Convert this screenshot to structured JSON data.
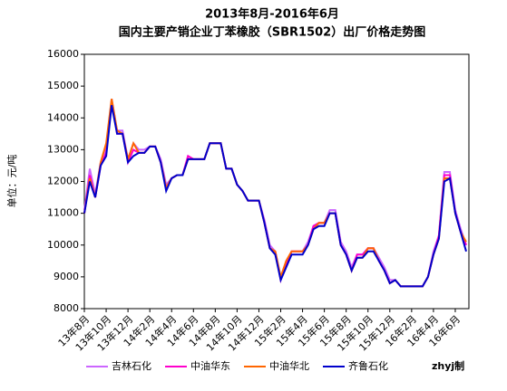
{
  "chart_data": {
    "type": "line",
    "title": "2013年8月-2016年6月",
    "subtitle": "国内主要产销企业丁苯橡胶（SBR1502）出厂价格走势图",
    "y_label": "单位：元/吨",
    "annotation": "zhyj制",
    "categories": [
      "13年8月",
      null,
      null,
      null,
      "13年10月",
      null,
      null,
      null,
      "13年12月",
      null,
      null,
      null,
      "14年2月",
      null,
      null,
      null,
      "14年4月",
      null,
      null,
      null,
      "14年6月",
      null,
      null,
      null,
      "14年8月",
      null,
      null,
      null,
      "14年10月",
      null,
      null,
      null,
      "14年12月",
      null,
      null,
      null,
      "15年2月",
      null,
      null,
      null,
      "15年4月",
      null,
      null,
      null,
      "15年6月",
      null,
      null,
      null,
      "15年8月",
      null,
      null,
      null,
      "15年10月",
      null,
      null,
      null,
      "15年12月",
      null,
      null,
      null,
      "16年2月",
      null,
      null,
      null,
      "16年4月",
      null,
      null,
      null,
      "16年6月",
      null,
      null
    ],
    "ylim": [
      8000,
      16000
    ],
    "yticks": [
      8000,
      9000,
      10000,
      11000,
      12000,
      13000,
      14000,
      15000,
      16000
    ],
    "grid": false,
    "legend": "bottom",
    "series": [
      {
        "name": "吉林石化",
        "color": "#cc66ff",
        "values": [
          11100,
          12400,
          11600,
          12600,
          13000,
          14600,
          13600,
          13600,
          12700,
          13200,
          13000,
          13000,
          13100,
          13100,
          12700,
          11900,
          12100,
          12200,
          12200,
          12800,
          12700,
          12700,
          12700,
          13200,
          13200,
          13200,
          12400,
          12400,
          11900,
          11700,
          11400,
          11400,
          11400,
          10800,
          10000,
          9800,
          9000,
          9400,
          9800,
          9800,
          9800,
          10100,
          10600,
          10700,
          10700,
          11100,
          11100,
          10100,
          9800,
          9300,
          9700,
          9700,
          9900,
          9900,
          9600,
          9300,
          8900,
          8900,
          8700,
          8700,
          8700,
          8700,
          8700,
          9000,
          9800,
          10300,
          12300,
          12300,
          11100,
          10500,
          10000
        ]
      },
      {
        "name": "中油华东",
        "color": "#ff00cc",
        "values": [
          11000,
          12200,
          11500,
          12500,
          12900,
          14500,
          13500,
          13500,
          12600,
          13000,
          12900,
          12900,
          13100,
          13100,
          12600,
          11800,
          12100,
          12200,
          12200,
          12800,
          12700,
          12700,
          12700,
          13200,
          13200,
          13200,
          12400,
          12400,
          11900,
          11700,
          11400,
          11400,
          11400,
          10700,
          9900,
          9800,
          8900,
          9400,
          9800,
          9800,
          9800,
          10000,
          10600,
          10700,
          10700,
          11000,
          11000,
          10000,
          9700,
          9200,
          9700,
          9700,
          9900,
          9900,
          9500,
          9200,
          8800,
          8900,
          8700,
          8700,
          8700,
          8700,
          8700,
          9000,
          9700,
          10300,
          12200,
          12200,
          11000,
          10400,
          10000
        ]
      },
      {
        "name": "中油华北",
        "color": "#ff6600",
        "values": [
          11000,
          12100,
          11500,
          12600,
          13200,
          14600,
          13600,
          13500,
          12700,
          13200,
          12900,
          12900,
          13100,
          13100,
          12600,
          11800,
          12100,
          12200,
          12200,
          12700,
          12700,
          12700,
          12700,
          13200,
          13200,
          13200,
          12400,
          12400,
          11900,
          11700,
          11400,
          11400,
          11400,
          10700,
          9900,
          9800,
          9000,
          9500,
          9800,
          9800,
          9800,
          10000,
          10500,
          10700,
          10700,
          11000,
          11000,
          10000,
          9700,
          9200,
          9600,
          9600,
          9900,
          9900,
          9500,
          9200,
          8800,
          8900,
          8700,
          8700,
          8700,
          8700,
          8700,
          9000,
          9700,
          10200,
          12100,
          12100,
          11000,
          10400,
          10100
        ]
      },
      {
        "name": "齐鲁石化",
        "color": "#0000cc",
        "values": [
          11000,
          12000,
          11500,
          12500,
          12800,
          14400,
          13500,
          13500,
          12600,
          12800,
          12900,
          12900,
          13100,
          13100,
          12600,
          11700,
          12100,
          12200,
          12200,
          12700,
          12700,
          12700,
          12700,
          13200,
          13200,
          13200,
          12400,
          12400,
          11900,
          11700,
          11400,
          11400,
          11400,
          10700,
          9900,
          9700,
          8900,
          9300,
          9700,
          9700,
          9700,
          10000,
          10500,
          10600,
          10600,
          11000,
          11000,
          10000,
          9700,
          9200,
          9600,
          9600,
          9800,
          9800,
          9500,
          9200,
          8800,
          8900,
          8700,
          8700,
          8700,
          8700,
          8700,
          9000,
          9700,
          10200,
          12000,
          12100,
          11000,
          10400,
          9800
        ]
      }
    ]
  }
}
